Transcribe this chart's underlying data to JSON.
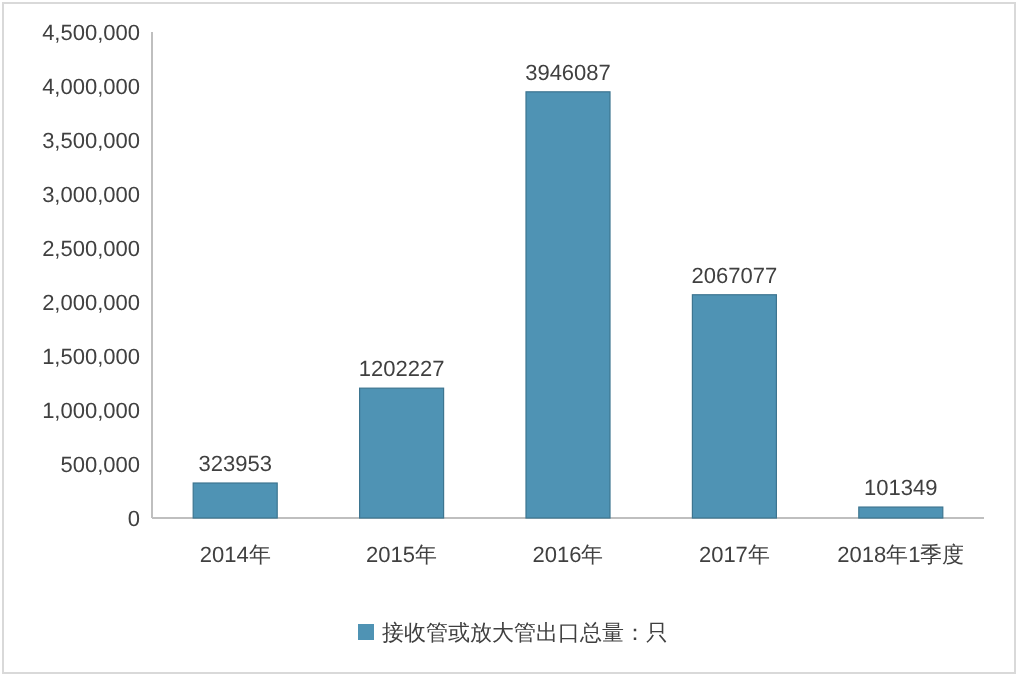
{
  "chart_data": {
    "type": "bar",
    "categories": [
      "2014年",
      "2015年",
      "2016年",
      "2017年",
      "2018年1季度"
    ],
    "series": [
      {
        "name": "接收管或放大管出口总量：只",
        "color": "#4f93b4",
        "values": [
          323953,
          1202227,
          3946087,
          2067077,
          101349
        ]
      }
    ],
    "ylim": [
      0,
      4500000
    ],
    "yticks": [
      {
        "value": 0,
        "label": "0"
      },
      {
        "value": 500000,
        "label": "500,000"
      },
      {
        "value": 1000000,
        "label": "1,000,000"
      },
      {
        "value": 1500000,
        "label": "1,500,000"
      },
      {
        "value": 2000000,
        "label": "2,000,000"
      },
      {
        "value": 2500000,
        "label": "2,500,000"
      },
      {
        "value": 3000000,
        "label": "3,000,000"
      },
      {
        "value": 3500000,
        "label": "3,500,000"
      },
      {
        "value": 4000000,
        "label": "4,000,000"
      },
      {
        "value": 4500000,
        "label": "4,500,000"
      }
    ],
    "data_labels": true,
    "legend": "bottom"
  }
}
